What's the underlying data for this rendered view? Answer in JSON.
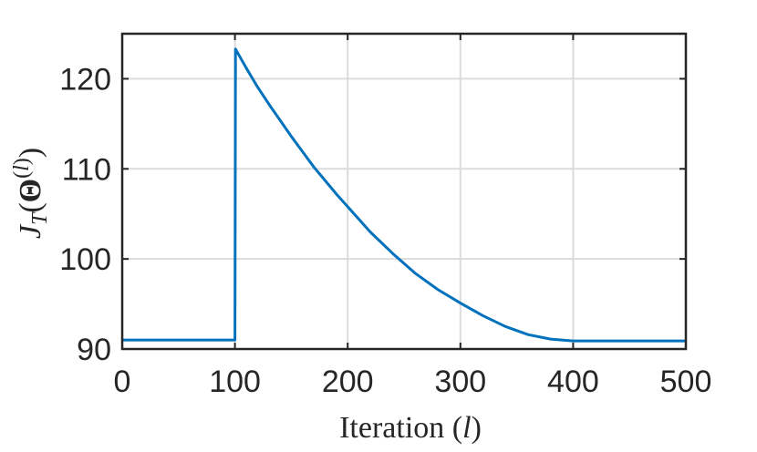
{
  "chart_data": {
    "type": "line",
    "title": "",
    "xlabel": "Iteration (l)",
    "ylabel": "J_T(Θ^(l))",
    "xlim": [
      0,
      500
    ],
    "ylim": [
      90,
      125
    ],
    "xticks": [
      "0",
      "100",
      "200",
      "300",
      "400",
      "500"
    ],
    "yticks": [
      "90",
      "100",
      "110",
      "120"
    ],
    "grid": true,
    "color": "#0072BD",
    "series": [
      {
        "x": [
          0,
          100,
          100.5,
          110,
          120,
          130,
          140,
          150,
          160,
          170,
          180,
          190,
          200,
          220,
          240,
          260,
          280,
          300,
          320,
          340,
          360,
          380,
          400,
          450,
          500
        ],
        "y": [
          91.0,
          91.0,
          123.3,
          121.2,
          119.1,
          117.2,
          115.4,
          113.6,
          111.9,
          110.2,
          108.7,
          107.2,
          105.8,
          103.0,
          100.6,
          98.4,
          96.6,
          95.1,
          93.7,
          92.5,
          91.6,
          91.1,
          90.9,
          90.9,
          90.9
        ]
      }
    ]
  }
}
